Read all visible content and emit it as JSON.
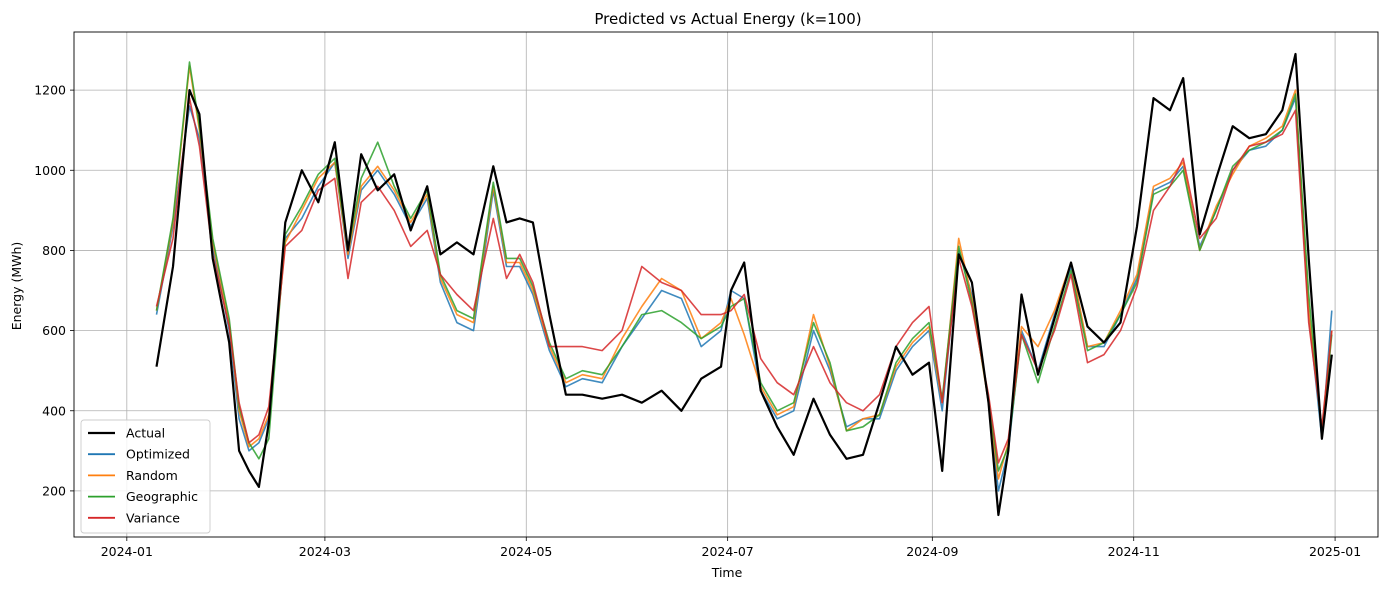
{
  "chart_data": {
    "type": "line",
    "title": "Predicted vs Actual Energy (k=100)",
    "xlabel": "Time",
    "ylabel": "Energy (MWh)",
    "xlim": [
      "2023-12-16",
      "2025-01-14"
    ],
    "ylim": [
      85,
      1345
    ],
    "x_ticks": [
      "2024-01",
      "2024-03",
      "2024-05",
      "2024-07",
      "2024-09",
      "2024-11",
      "2025-01"
    ],
    "y_ticks": [
      200,
      400,
      600,
      800,
      1000,
      1200
    ],
    "grid": true,
    "legend_position": "lower-left",
    "x": [
      "2024-01-10",
      "2024-01-15",
      "2024-01-20",
      "2024-01-23",
      "2024-01-27",
      "2024-02-01",
      "2024-02-04",
      "2024-02-07",
      "2024-02-10",
      "2024-02-13",
      "2024-02-18",
      "2024-02-23",
      "2024-02-28",
      "2024-03-04",
      "2024-03-08",
      "2024-03-12",
      "2024-03-17",
      "2024-03-22",
      "2024-03-27",
      "2024-04-01",
      "2024-04-05",
      "2024-04-10",
      "2024-04-15",
      "2024-04-21",
      "2024-04-25",
      "2024-04-29",
      "2024-05-03",
      "2024-05-08",
      "2024-05-13",
      "2024-05-18",
      "2024-05-24",
      "2024-05-30",
      "2024-06-05",
      "2024-06-11",
      "2024-06-17",
      "2024-06-23",
      "2024-06-29",
      "2024-07-02",
      "2024-07-06",
      "2024-07-11",
      "2024-07-16",
      "2024-07-21",
      "2024-07-27",
      "2024-08-01",
      "2024-08-06",
      "2024-08-11",
      "2024-08-16",
      "2024-08-21",
      "2024-08-26",
      "2024-08-31",
      "2024-09-04",
      "2024-09-09",
      "2024-09-13",
      "2024-09-18",
      "2024-09-21",
      "2024-09-24",
      "2024-09-28",
      "2024-10-03",
      "2024-10-08",
      "2024-10-13",
      "2024-10-18",
      "2024-10-23",
      "2024-10-28",
      "2024-11-02",
      "2024-11-07",
      "2024-11-12",
      "2024-11-16",
      "2024-11-21",
      "2024-11-26",
      "2024-12-01",
      "2024-12-06",
      "2024-12-11",
      "2024-12-16",
      "2024-12-20",
      "2024-12-24",
      "2024-12-28",
      "2024-12-31"
    ],
    "series": [
      {
        "name": "Actual",
        "color": "#000000",
        "values": [
          510,
          760,
          1200,
          1140,
          780,
          570,
          300,
          250,
          210,
          370,
          870,
          1000,
          920,
          1070,
          800,
          1040,
          950,
          990,
          850,
          960,
          790,
          820,
          790,
          1010,
          870,
          880,
          870,
          640,
          440,
          440,
          430,
          440,
          420,
          450,
          400,
          480,
          510,
          700,
          770,
          450,
          360,
          290,
          430,
          340,
          280,
          290,
          420,
          560,
          490,
          520,
          250,
          790,
          720,
          420,
          140,
          300,
          690,
          490,
          630,
          770,
          610,
          570,
          620,
          860,
          1180,
          1150,
          1230,
          840,
          980,
          1110,
          1080,
          1090,
          1150,
          1290,
          780,
          330,
          540
        ]
      },
      {
        "name": "Optimized",
        "color": "#1f77b4",
        "values": [
          640,
          860,
          1160,
          1080,
          810,
          600,
          380,
          300,
          320,
          380,
          830,
          880,
          960,
          1020,
          780,
          950,
          1000,
          940,
          860,
          930,
          720,
          620,
          600,
          950,
          760,
          760,
          690,
          550,
          460,
          480,
          470,
          560,
          630,
          700,
          680,
          560,
          600,
          700,
          680,
          450,
          380,
          400,
          600,
          500,
          360,
          380,
          380,
          500,
          560,
          600,
          400,
          800,
          690,
          420,
          200,
          300,
          600,
          500,
          640,
          760,
          560,
          560,
          640,
          730,
          950,
          970,
          1010,
          810,
          900,
          1000,
          1050,
          1060,
          1100,
          1180,
          640,
          330,
          650
        ]
      },
      {
        "name": "Random",
        "color": "#ff7f0e",
        "values": [
          650,
          870,
          1260,
          1100,
          820,
          620,
          400,
          310,
          330,
          390,
          820,
          900,
          980,
          1020,
          790,
          960,
          1010,
          950,
          870,
          940,
          730,
          640,
          620,
          960,
          770,
          770,
          700,
          560,
          470,
          490,
          480,
          580,
          660,
          730,
          700,
          580,
          620,
          680,
          590,
          460,
          390,
          410,
          640,
          510,
          350,
          380,
          390,
          510,
          570,
          610,
          420,
          830,
          680,
          420,
          230,
          320,
          610,
          560,
          650,
          770,
          560,
          570,
          650,
          740,
          960,
          980,
          1020,
          800,
          910,
          990,
          1060,
          1080,
          1110,
          1200,
          650,
          350,
          600
        ]
      },
      {
        "name": "Geographic",
        "color": "#2ca02c",
        "values": [
          650,
          880,
          1270,
          1110,
          830,
          630,
          410,
          320,
          280,
          330,
          840,
          910,
          990,
          1030,
          800,
          980,
          1070,
          960,
          880,
          950,
          740,
          650,
          630,
          970,
          780,
          780,
          710,
          570,
          480,
          500,
          490,
          560,
          640,
          650,
          620,
          580,
          610,
          660,
          680,
          470,
          400,
          420,
          620,
          520,
          350,
          360,
          390,
          520,
          580,
          620,
          430,
          810,
          670,
          430,
          250,
          310,
          590,
          470,
          610,
          750,
          550,
          570,
          640,
          720,
          940,
          960,
          1000,
          800,
          900,
          1010,
          1050,
          1070,
          1100,
          1190,
          690,
          340,
          590
        ]
      },
      {
        "name": "Variance",
        "color": "#d62728",
        "values": [
          660,
          830,
          1180,
          1060,
          790,
          610,
          420,
          320,
          340,
          410,
          810,
          850,
          950,
          980,
          730,
          920,
          960,
          900,
          810,
          850,
          740,
          690,
          650,
          880,
          730,
          790,
          720,
          560,
          560,
          560,
          550,
          600,
          760,
          720,
          700,
          640,
          640,
          650,
          690,
          530,
          470,
          440,
          560,
          470,
          420,
          400,
          440,
          560,
          620,
          660,
          420,
          780,
          660,
          440,
          270,
          330,
          590,
          500,
          600,
          740,
          520,
          540,
          600,
          710,
          900,
          960,
          1030,
          830,
          880,
          1000,
          1060,
          1070,
          1090,
          1150,
          620,
          360,
          600
        ]
      }
    ]
  }
}
